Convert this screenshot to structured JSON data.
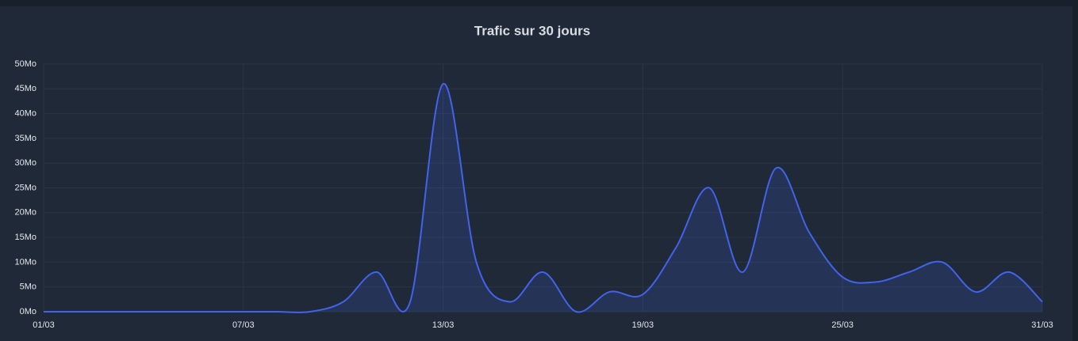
{
  "chart_data": {
    "type": "area",
    "title": "Trafic sur 30 jours",
    "categories": [
      "01/03",
      null,
      null,
      null,
      null,
      null,
      "07/03",
      null,
      null,
      null,
      null,
      null,
      "13/03",
      null,
      null,
      null,
      null,
      null,
      "19/03",
      null,
      null,
      null,
      null,
      null,
      "25/03",
      null,
      null,
      null,
      null,
      null,
      "31/03"
    ],
    "values": [
      0,
      0,
      0,
      0,
      0,
      0,
      0,
      0,
      0,
      2,
      8,
      1.8,
      46,
      10,
      2,
      8,
      0,
      4,
      3.5,
      13,
      25,
      8,
      29,
      16,
      7,
      6,
      8,
      10,
      4,
      8,
      2
    ],
    "color": "#4263eb",
    "ylim": [
      0,
      50
    ],
    "yticks": [
      {
        "value": 0,
        "label": "0Mo"
      },
      {
        "value": 5,
        "label": "5Mo"
      },
      {
        "value": 10,
        "label": "10Mo"
      },
      {
        "value": 15,
        "label": "15Mo"
      },
      {
        "value": 20,
        "label": "20Mo"
      },
      {
        "value": 25,
        "label": "25Mo"
      },
      {
        "value": 30,
        "label": "30Mo"
      },
      {
        "value": 35,
        "label": "35Mo"
      },
      {
        "value": 40,
        "label": "40Mo"
      },
      {
        "value": 45,
        "label": "45Mo"
      },
      {
        "value": 50,
        "label": "50Mo"
      }
    ],
    "grid": true
  }
}
